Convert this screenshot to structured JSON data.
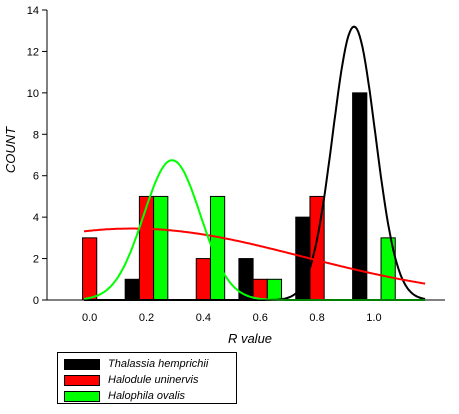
{
  "chart_data": {
    "type": "bar",
    "xlabel": "R value",
    "ylabel": "COUNT",
    "xlim": [
      -0.15,
      1.25
    ],
    "ylim": [
      0,
      14
    ],
    "x_ticks": [
      0.0,
      0.2,
      0.4,
      0.6,
      0.8,
      1.0
    ],
    "x_tick_labels": [
      "0.0",
      "0.2",
      "0.4",
      "0.6",
      "0.8",
      "1.0"
    ],
    "y_ticks": [
      0,
      2,
      4,
      6,
      8,
      10,
      12,
      14
    ],
    "bar_width": 0.05,
    "series": [
      {
        "name": "Thalassia hemprichii",
        "color": "#000000",
        "bins": [
          0.0,
          0.2,
          0.4,
          0.6,
          0.8,
          1.0
        ],
        "values": [
          0,
          1,
          0,
          2,
          4,
          10
        ],
        "fit_curve": {
          "shape": "normal",
          "mean": 0.93,
          "sd": 0.075,
          "peak": 13.2
        }
      },
      {
        "name": "Halodule uninervis",
        "color": "#ff0000",
        "bins": [
          0.0,
          0.2,
          0.4,
          0.6,
          0.8,
          1.0
        ],
        "values": [
          3,
          5,
          2,
          1,
          5,
          0
        ],
        "fit_curve": {
          "shape": "normal",
          "mean": 0.15,
          "sd": 0.6,
          "peak": 3.45
        }
      },
      {
        "name": "Halophila ovalis",
        "color": "#00ff00",
        "bins": [
          0.0,
          0.2,
          0.4,
          0.6,
          0.8,
          1.0
        ],
        "values": [
          0,
          5,
          5,
          1,
          0,
          3
        ],
        "fit_curve": {
          "shape": "normal",
          "mean": 0.29,
          "sd": 0.1,
          "peak": 6.75
        }
      }
    ]
  }
}
